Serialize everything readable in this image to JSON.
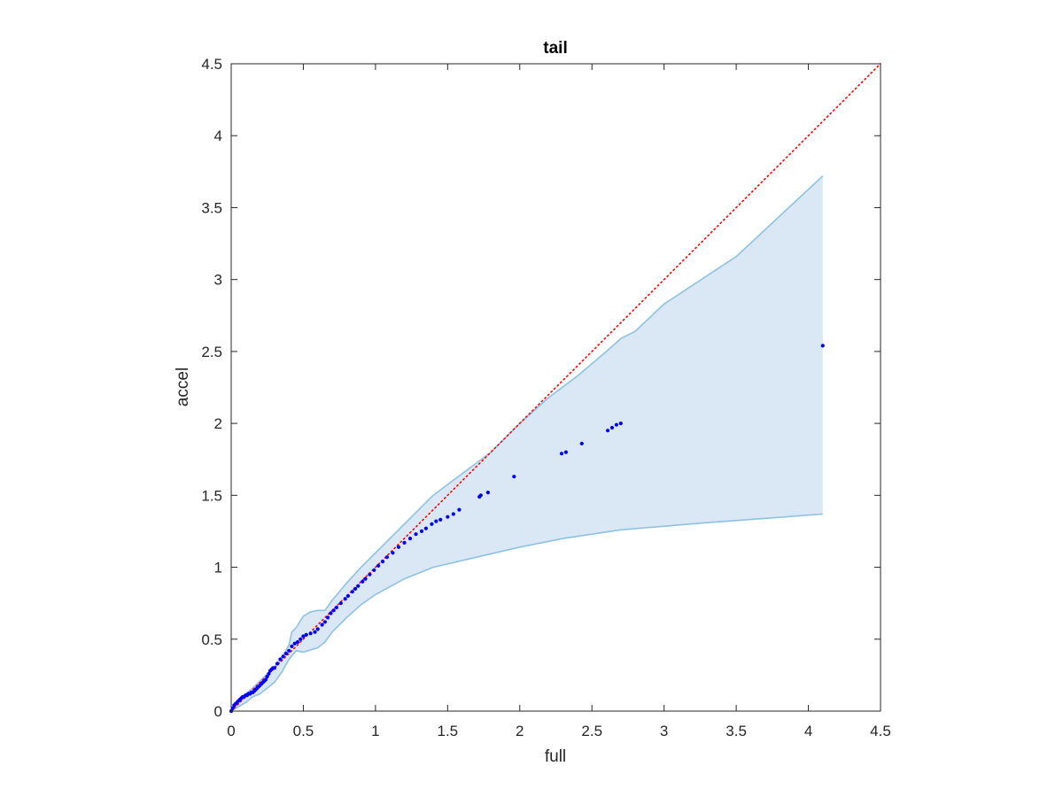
{
  "chart_data": {
    "type": "scatter",
    "title": "tail",
    "xlabel": "full",
    "ylabel": "accel",
    "xlim": [
      0,
      4.5
    ],
    "ylim": [
      0,
      4.5
    ],
    "xticks": [
      "0",
      "0.5",
      "1",
      "1.5",
      "2",
      "2.5",
      "3",
      "3.5",
      "4",
      "4.5"
    ],
    "yticks": [
      "0",
      "0.5",
      "1",
      "1.5",
      "2",
      "2.5",
      "3",
      "3.5",
      "4",
      "4.5"
    ],
    "grid": false,
    "colors": {
      "points": "#0000ff",
      "reference": "#ff0000",
      "band_fill": "#d9e8f4",
      "band_edge": "#8fc1e3",
      "axes": "#262626"
    },
    "reference_line": {
      "style": "dotted",
      "x": [
        0,
        4.5
      ],
      "y": [
        0,
        4.5
      ]
    },
    "band": {
      "upper": [
        [
          0,
          0
        ],
        [
          0.05,
          0.07
        ],
        [
          0.1,
          0.12
        ],
        [
          0.15,
          0.16
        ],
        [
          0.2,
          0.21
        ],
        [
          0.25,
          0.26
        ],
        [
          0.3,
          0.31
        ],
        [
          0.35,
          0.37
        ],
        [
          0.4,
          0.46
        ],
        [
          0.42,
          0.55
        ],
        [
          0.45,
          0.58
        ],
        [
          0.5,
          0.66
        ],
        [
          0.55,
          0.69
        ],
        [
          0.6,
          0.7
        ],
        [
          0.65,
          0.7
        ],
        [
          0.7,
          0.77
        ],
        [
          0.8,
          0.89
        ],
        [
          0.9,
          1.0
        ],
        [
          1.0,
          1.1
        ],
        [
          1.1,
          1.2
        ],
        [
          1.25,
          1.35
        ],
        [
          1.4,
          1.5
        ],
        [
          1.6,
          1.65
        ],
        [
          1.8,
          1.8
        ],
        [
          2.0,
          2.0
        ],
        [
          2.2,
          2.18
        ],
        [
          2.4,
          2.33
        ],
        [
          2.6,
          2.5
        ],
        [
          2.7,
          2.59
        ],
        [
          2.8,
          2.64
        ],
        [
          3.0,
          2.83
        ],
        [
          3.5,
          3.16
        ],
        [
          4.1,
          3.72
        ]
      ],
      "lower": [
        [
          0,
          0
        ],
        [
          0.05,
          0.03
        ],
        [
          0.1,
          0.06
        ],
        [
          0.15,
          0.1
        ],
        [
          0.2,
          0.12
        ],
        [
          0.25,
          0.16
        ],
        [
          0.3,
          0.2
        ],
        [
          0.35,
          0.27
        ],
        [
          0.4,
          0.36
        ],
        [
          0.45,
          0.42
        ],
        [
          0.5,
          0.41
        ],
        [
          0.6,
          0.44
        ],
        [
          0.65,
          0.48
        ],
        [
          0.7,
          0.55
        ],
        [
          0.8,
          0.65
        ],
        [
          0.9,
          0.74
        ],
        [
          1.0,
          0.81
        ],
        [
          1.2,
          0.92
        ],
        [
          1.4,
          1.0
        ],
        [
          1.7,
          1.07
        ],
        [
          2.0,
          1.14
        ],
        [
          2.3,
          1.2
        ],
        [
          2.7,
          1.26
        ],
        [
          3.3,
          1.31
        ],
        [
          4.1,
          1.37
        ]
      ]
    },
    "series": [
      {
        "x": [
          0.0,
          0.01,
          0.02,
          0.03,
          0.04,
          0.05,
          0.06,
          0.07,
          0.08,
          0.09,
          0.1,
          0.11,
          0.12,
          0.13,
          0.14,
          0.15,
          0.16,
          0.17,
          0.18,
          0.19,
          0.2,
          0.21,
          0.22,
          0.23,
          0.24,
          0.25,
          0.26,
          0.27,
          0.28,
          0.29,
          0.3,
          0.32,
          0.34,
          0.36,
          0.38,
          0.4,
          0.42,
          0.44,
          0.46,
          0.48,
          0.5,
          0.52,
          0.55,
          0.58,
          0.6,
          0.63,
          0.65,
          0.67,
          0.69,
          0.71,
          0.73,
          0.76,
          0.79,
          0.81,
          0.84,
          0.86,
          0.88,
          0.91,
          0.93,
          0.96,
          0.99,
          1.02,
          1.05,
          1.08,
          1.12,
          1.16,
          1.2,
          1.24,
          1.28,
          1.32,
          1.35,
          1.39,
          1.42,
          1.45,
          1.5,
          1.54,
          1.58,
          1.72,
          1.73,
          1.78,
          1.96,
          2.29,
          2.32,
          2.43,
          2.61,
          2.64,
          2.67,
          2.7,
          4.1
        ],
        "y": [
          0.0,
          0.02,
          0.04,
          0.05,
          0.06,
          0.07,
          0.08,
          0.09,
          0.1,
          0.1,
          0.11,
          0.11,
          0.12,
          0.12,
          0.13,
          0.13,
          0.14,
          0.15,
          0.16,
          0.17,
          0.18,
          0.19,
          0.2,
          0.21,
          0.22,
          0.24,
          0.26,
          0.28,
          0.29,
          0.3,
          0.3,
          0.33,
          0.36,
          0.38,
          0.4,
          0.42,
          0.45,
          0.47,
          0.48,
          0.5,
          0.52,
          0.53,
          0.54,
          0.55,
          0.57,
          0.6,
          0.62,
          0.65,
          0.68,
          0.7,
          0.72,
          0.75,
          0.78,
          0.8,
          0.83,
          0.85,
          0.87,
          0.9,
          0.92,
          0.95,
          0.98,
          1.01,
          1.04,
          1.07,
          1.1,
          1.14,
          1.17,
          1.2,
          1.23,
          1.25,
          1.27,
          1.3,
          1.32,
          1.33,
          1.35,
          1.37,
          1.4,
          1.49,
          1.5,
          1.52,
          1.63,
          1.79,
          1.8,
          1.86,
          1.95,
          1.97,
          1.99,
          2.0,
          2.54
        ]
      }
    ]
  }
}
